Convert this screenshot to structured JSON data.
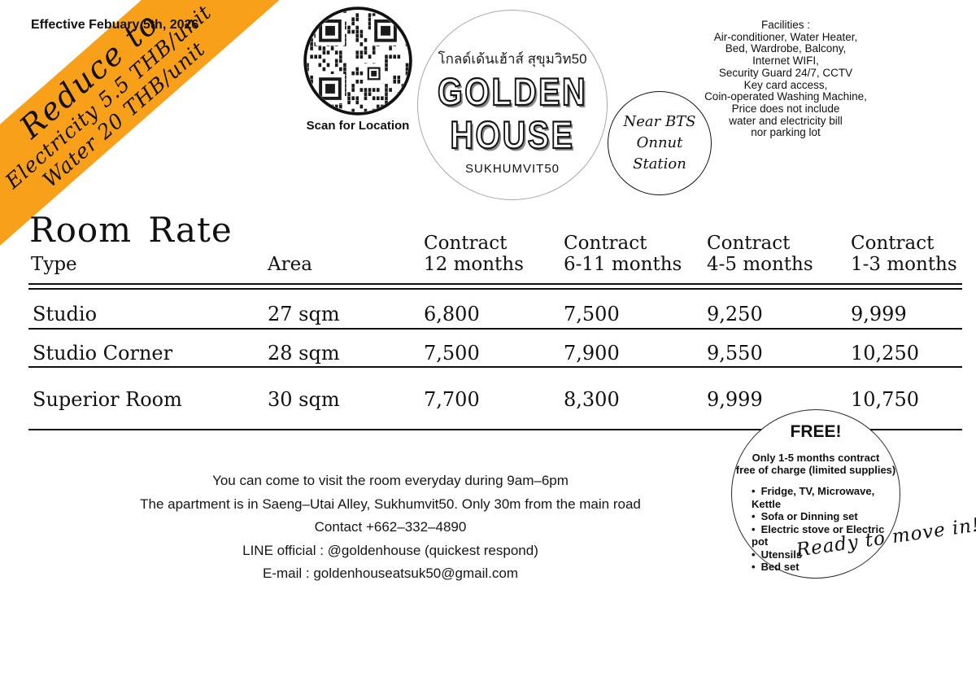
{
  "effective_note": "Effective Febuary 5th, 2026",
  "banner": {
    "color": "#F9A01B",
    "title": "Reduce to",
    "line1": "Electricity 5.5 THB/unit",
    "line2": "Water 20 THB/unit"
  },
  "qr": {
    "caption": "Scan for Location"
  },
  "logo": {
    "thai": "โกลด์เด้นเฮ้าส์ สุขุมวิท50",
    "name_top": "GOLDEN",
    "name_bottom": "HOUSE",
    "subtitle": "SUKHUMVIT50"
  },
  "bts_badge": {
    "line1": "Near BTS",
    "line2": "Onnut Station"
  },
  "facilities": {
    "lines": [
      "Facilities :",
      "Air-conditioner, Water Heater,",
      "Bed, Wardrobe, Balcony,",
      "Internet WIFI,",
      "Security Guard 24/7, CCTV",
      "Key card access,",
      "Coin-operated Washing Machine,",
      "Price does not include",
      "water and electricity bill",
      "nor parking lot"
    ]
  },
  "rate_table": {
    "title": "Room Rate",
    "col_type": "Type",
    "col_area": "Area",
    "contract_cols": [
      {
        "l1": "Contract",
        "l2": "12 months"
      },
      {
        "l1": "Contract",
        "l2": "6-11 months"
      },
      {
        "l1": "Contract",
        "l2": "4-5 months"
      },
      {
        "l1": "Contract",
        "l2": "1-3 months"
      }
    ],
    "rows": [
      {
        "type": "Studio",
        "area": "27 sqm",
        "m12": "6,800",
        "m6_11": "7,500",
        "m4_5": "9,250",
        "m1_3": "9,999"
      },
      {
        "type": "Studio Corner",
        "area": "28 sqm",
        "m12": "7,500",
        "m6_11": "7,900",
        "m4_5": "9,550",
        "m1_3": "10,250"
      },
      {
        "type": "Superior Room",
        "area": "30 sqm",
        "m12": "7,700",
        "m6_11": "8,300",
        "m4_5": "9,999",
        "m1_3": "10,750"
      }
    ]
  },
  "contact": {
    "lines": [
      "You can come to visit the room everyday during 9am–6pm",
      "The apartment is in Saeng–Utai Alley, Sukhumvit50. Only 30m from the main road",
      "Contact +662–332–4890",
      "LINE official : @goldenhouse (quickest respond)",
      "E-mail : goldenhouseatsuk50@gmail.com"
    ]
  },
  "free_badge": {
    "title": "FREE!",
    "subtitle1": "Only 1-5 months contract",
    "subtitle2": "free of charge (limited supplies)",
    "bullets": [
      "Fridge, TV, Microwave, Kettle",
      "Sofa or Dinning set",
      "Electric stove or Electric pot",
      "Utensils",
      "Bed set"
    ]
  },
  "ready_note": "Ready to move in!"
}
